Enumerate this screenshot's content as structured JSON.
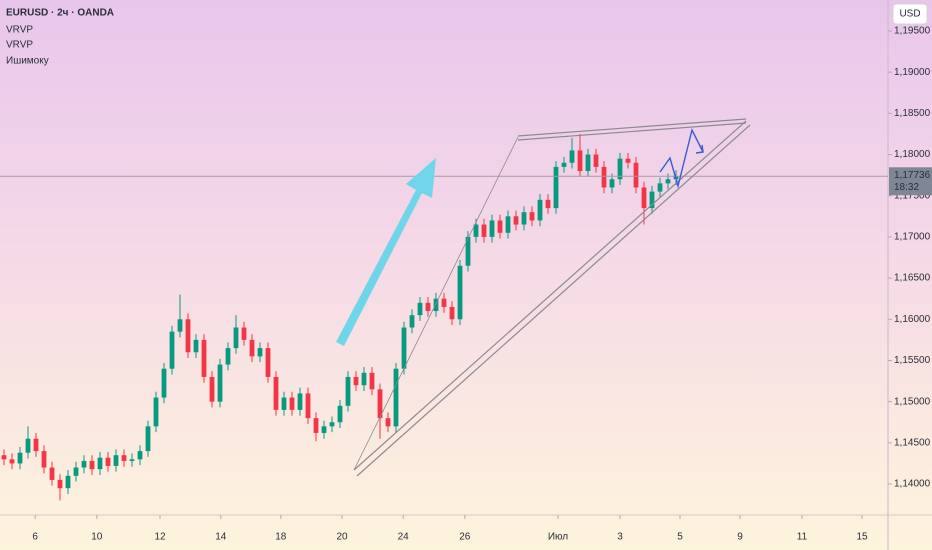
{
  "chart_data": {
    "type": "candlestick",
    "title": "EURUSD · 2ч · OANDA",
    "indicators": [
      "VRVP",
      "VRVP",
      "Ишимоку"
    ],
    "currency": "USD",
    "last_price": {
      "value": 1.17736,
      "label": "1,17736"
    },
    "countdown": "18:32",
    "up_color": "#089981",
    "down_color": "#f23645",
    "xlim": [
      0,
      111
    ],
    "xticks": [
      {
        "value": 4.4,
        "label": "6"
      },
      {
        "value": 12.1,
        "label": "10"
      },
      {
        "value": 20,
        "label": "12"
      },
      {
        "value": 27.6,
        "label": "14"
      },
      {
        "value": 35.1,
        "label": "18"
      },
      {
        "value": 42.75,
        "label": "20"
      },
      {
        "value": 50.4,
        "label": "24"
      },
      {
        "value": 58.1,
        "label": "26"
      },
      {
        "value": 69.75,
        "label": "Июл"
      },
      {
        "value": 77.5,
        "label": "3"
      },
      {
        "value": 85,
        "label": "5"
      },
      {
        "value": 92.5,
        "label": "9"
      },
      {
        "value": 100.25,
        "label": "11"
      },
      {
        "value": 107.75,
        "label": "15"
      }
    ],
    "ylim": [
      1.13624,
      1.19876
    ],
    "yticks": [
      {
        "value": 1.14,
        "label": "1,14000"
      },
      {
        "value": 1.145,
        "label": "1,14500"
      },
      {
        "value": 1.15,
        "label": "1,15000"
      },
      {
        "value": 1.155,
        "label": "1,15500"
      },
      {
        "value": 1.16,
        "label": "1,16000"
      },
      {
        "value": 1.165,
        "label": "1,16500"
      },
      {
        "value": 1.17,
        "label": "1,17000"
      },
      {
        "value": 1.175,
        "label": "1,17500"
      },
      {
        "value": 1.18,
        "label": "1,18000"
      },
      {
        "value": 1.185,
        "label": "1,18500"
      },
      {
        "value": 1.19,
        "label": "1,19000"
      },
      {
        "value": 1.195,
        "label": "1,19500"
      }
    ],
    "open": [
      1.1435,
      1.143,
      1.1425,
      1.1438,
      1.1455,
      1.144,
      1.142,
      1.1405,
      1.1395,
      1.141,
      1.142,
      1.1428,
      1.1418,
      1.1432,
      1.1422,
      1.1435,
      1.1428,
      1.143,
      1.144,
      1.147,
      1.1505,
      1.154,
      1.1585,
      1.16,
      1.156,
      1.1575,
      1.153,
      1.15,
      1.1545,
      1.1565,
      1.159,
      1.1575,
      1.1555,
      1.1565,
      1.153,
      1.149,
      1.1505,
      1.149,
      1.151,
      1.148,
      1.1462,
      1.147,
      1.1475,
      1.1495,
      1.153,
      1.152,
      1.1535,
      1.1515,
      1.148,
      1.147,
      1.154,
      1.159,
      1.1605,
      1.162,
      1.161,
      1.1625,
      1.1615,
      1.16,
      1.1665,
      1.17,
      1.1715,
      1.17,
      1.172,
      1.1705,
      1.1725,
      1.1715,
      1.173,
      1.172,
      1.1745,
      1.1735,
      1.1785,
      1.179,
      1.1805,
      1.178,
      1.18,
      1.1785,
      1.176,
      1.177,
      1.1795,
      1.179,
      1.176,
      1.1735,
      1.1755,
      1.1765,
      1.177
    ],
    "high": [
      1.1442,
      1.1437,
      1.1445,
      1.147,
      1.1462,
      1.1447,
      1.1427,
      1.1412,
      1.1417,
      1.1427,
      1.1435,
      1.1435,
      1.1439,
      1.1439,
      1.1442,
      1.1442,
      1.1437,
      1.1447,
      1.1477,
      1.1512,
      1.1547,
      1.1592,
      1.163,
      1.1607,
      1.1582,
      1.1582,
      1.1537,
      1.1552,
      1.1572,
      1.1605,
      1.1597,
      1.1582,
      1.1572,
      1.1572,
      1.1537,
      1.1512,
      1.1512,
      1.1517,
      1.1517,
      1.1487,
      1.1477,
      1.1482,
      1.1502,
      1.1537,
      1.1537,
      1.1542,
      1.1542,
      1.1522,
      1.1487,
      1.1547,
      1.1597,
      1.1612,
      1.1627,
      1.1627,
      1.1632,
      1.1632,
      1.1622,
      1.1672,
      1.1707,
      1.1722,
      1.1722,
      1.1727,
      1.1727,
      1.1732,
      1.1732,
      1.1737,
      1.1737,
      1.1752,
      1.1752,
      1.1792,
      1.1797,
      1.182,
      1.1825,
      1.1807,
      1.1807,
      1.1792,
      1.1777,
      1.1802,
      1.1802,
      1.1797,
      1.1767,
      1.1762,
      1.1772,
      1.1777,
      1.1781
    ],
    "low": [
      1.1423,
      1.1418,
      1.1418,
      1.1431,
      1.1433,
      1.1413,
      1.1398,
      1.138,
      1.1388,
      1.1403,
      1.1413,
      1.1411,
      1.1411,
      1.1415,
      1.1415,
      1.1421,
      1.1421,
      1.1423,
      1.1433,
      1.1463,
      1.1498,
      1.1533,
      1.1578,
      1.1553,
      1.1553,
      1.1523,
      1.1493,
      1.1493,
      1.1538,
      1.1558,
      1.1568,
      1.1548,
      1.1548,
      1.1523,
      1.1483,
      1.1483,
      1.1483,
      1.1483,
      1.1473,
      1.1452,
      1.1455,
      1.1463,
      1.1468,
      1.1488,
      1.1513,
      1.1513,
      1.1508,
      1.1455,
      1.1463,
      1.1463,
      1.1533,
      1.1583,
      1.1598,
      1.1603,
      1.1603,
      1.1608,
      1.1593,
      1.1593,
      1.1658,
      1.1693,
      1.1693,
      1.1693,
      1.1698,
      1.1698,
      1.1708,
      1.1708,
      1.1713,
      1.1713,
      1.1728,
      1.1728,
      1.1778,
      1.1783,
      1.1773,
      1.1773,
      1.1778,
      1.1753,
      1.1753,
      1.1763,
      1.1783,
      1.1753,
      1.1715,
      1.1728,
      1.1748,
      1.1758,
      1.1763
    ],
    "close": [
      1.143,
      1.1425,
      1.1438,
      1.1455,
      1.144,
      1.142,
      1.1405,
      1.1395,
      1.141,
      1.142,
      1.1428,
      1.1418,
      1.1432,
      1.1422,
      1.1435,
      1.1428,
      1.143,
      1.144,
      1.147,
      1.1505,
      1.154,
      1.1585,
      1.16,
      1.156,
      1.1575,
      1.153,
      1.15,
      1.1545,
      1.1565,
      1.159,
      1.1575,
      1.1555,
      1.1565,
      1.153,
      1.149,
      1.1505,
      1.149,
      1.151,
      1.148,
      1.1462,
      1.147,
      1.1475,
      1.1495,
      1.153,
      1.152,
      1.1535,
      1.1515,
      1.148,
      1.147,
      1.154,
      1.159,
      1.1605,
      1.162,
      1.161,
      1.1625,
      1.1615,
      1.16,
      1.1665,
      1.17,
      1.1715,
      1.17,
      1.172,
      1.1705,
      1.1725,
      1.1715,
      1.173,
      1.172,
      1.1745,
      1.1735,
      1.1785,
      1.179,
      1.1805,
      1.178,
      1.18,
      1.1785,
      1.176,
      1.177,
      1.1795,
      1.179,
      1.176,
      1.1735,
      1.1755,
      1.1765,
      1.177,
      1.1774
    ]
  }
}
